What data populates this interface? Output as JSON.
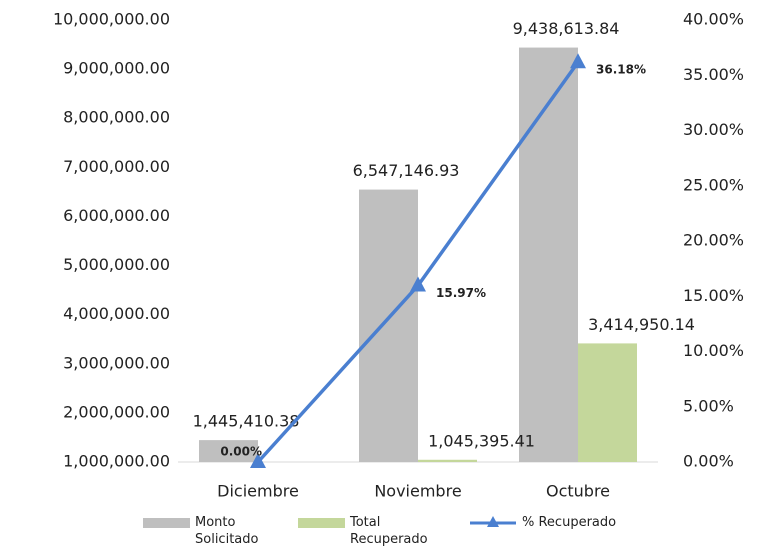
{
  "chart_data": {
    "type": "bar-line",
    "categories": [
      "Diciembre",
      "Noviembre",
      "Octubre"
    ],
    "series": [
      {
        "name": "Monto Solicitado",
        "type": "bar",
        "color": "#bfbfbf",
        "values": [
          1445410.38,
          6547146.93,
          9438613.84
        ],
        "value_labels": [
          "1,445,410.38",
          "6,547,146.93",
          "9,438,613.84"
        ]
      },
      {
        "name": "Total Recuperado",
        "type": "bar",
        "color": "#c4d79b",
        "values": [
          null,
          1045395.41,
          3414950.14
        ],
        "value_labels": [
          null,
          "1,045,395.41",
          "3,414,950.14"
        ]
      },
      {
        "name": "% Recuperado",
        "type": "line",
        "axis": "y2",
        "color": "#4a7fd0",
        "values": [
          0,
          15.97,
          36.18
        ],
        "value_labels": [
          "0.00%",
          "15.97%",
          "36.18%"
        ]
      }
    ],
    "ylim": [
      1000000,
      10000000
    ],
    "yticks": [
      {
        "value": 1000000,
        "label": "1,000,000.00"
      },
      {
        "value": 2000000,
        "label": "2,000,000.00"
      },
      {
        "value": 3000000,
        "label": "3,000,000.00"
      },
      {
        "value": 4000000,
        "label": "4,000,000.00"
      },
      {
        "value": 5000000,
        "label": "5,000,000.00"
      },
      {
        "value": 6000000,
        "label": "6,000,000.00"
      },
      {
        "value": 7000000,
        "label": "7,000,000.00"
      },
      {
        "value": 8000000,
        "label": "8,000,000.00"
      },
      {
        "value": 9000000,
        "label": "9,000,000.00"
      },
      {
        "value": 10000000,
        "label": "10,000,000.00"
      }
    ],
    "y2lim": [
      0,
      40
    ],
    "y2ticks": [
      {
        "value": 0,
        "label": "0.00%"
      },
      {
        "value": 5,
        "label": "5.00%"
      },
      {
        "value": 10,
        "label": "10.00%"
      },
      {
        "value": 15,
        "label": "15.00%"
      },
      {
        "value": 20,
        "label": "20.00%"
      },
      {
        "value": 25,
        "label": "25.00%"
      },
      {
        "value": 30,
        "label": "30.00%"
      },
      {
        "value": 35,
        "label": "35.00%"
      },
      {
        "value": 40,
        "label": "40.00%"
      }
    ],
    "grid": false,
    "legend": "bottom"
  }
}
